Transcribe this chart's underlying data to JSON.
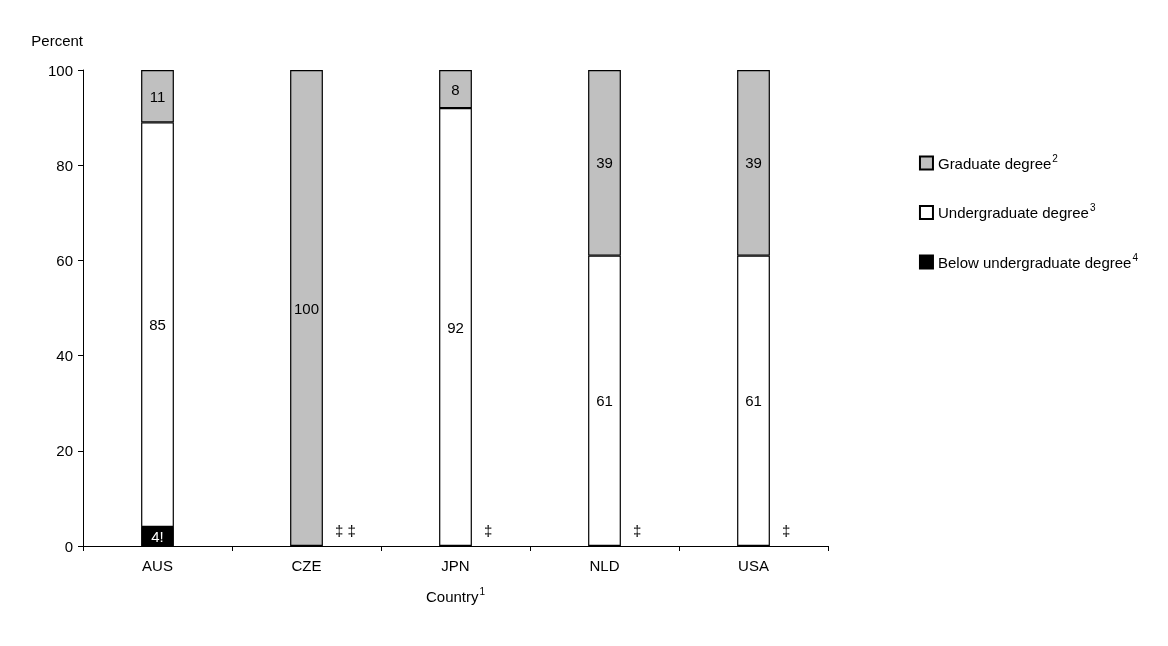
{
  "chart_data": {
    "type": "bar",
    "stacked": true,
    "xlabel": "Country$^{1}$",
    "ylabel": "Percent",
    "categories": [
      "AUS",
      "CZE",
      "JPN",
      "NLD",
      "USA"
    ],
    "series": [
      {
        "name": "Below undergraduate degree$^{4}$",
        "color": "#000000",
        "values": [
          4,
          null,
          null,
          null,
          null
        ],
        "value_labels": [
          "4!",
          null,
          null,
          null,
          null
        ]
      },
      {
        "name": "Undergraduate degree$^{3}$",
        "color": "#ffffff",
        "values": [
          85,
          null,
          92,
          61,
          61
        ],
        "value_labels": [
          "85",
          null,
          "92",
          "61",
          "61"
        ]
      },
      {
        "name": "Graduate degree$^{2}$",
        "color": "#c0c0c0",
        "values": [
          11,
          100,
          8,
          39,
          39
        ],
        "value_labels": [
          "11",
          "100",
          "8",
          "39",
          "39"
        ]
      }
    ],
    "ylim": [
      0,
      100
    ],
    "yticks": [
      0,
      20,
      40,
      60,
      80,
      100
    ],
    "grid": false,
    "legend": "right",
    "annotations": [
      {
        "text": "‡ ‡",
        "x": "CZE",
        "y": 0
      },
      {
        "text": "‡",
        "x": "JPN",
        "y": 0
      },
      {
        "text": "‡",
        "x": "NLD",
        "y": 0
      },
      {
        "text": "‡",
        "x": "USA",
        "y": 0
      }
    ]
  }
}
